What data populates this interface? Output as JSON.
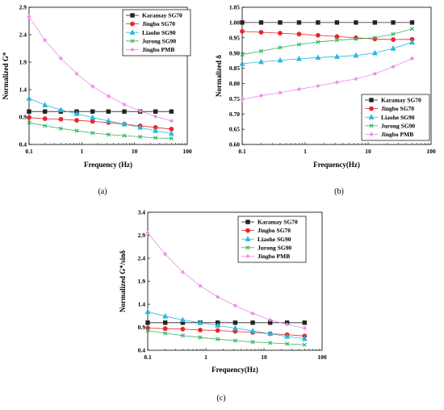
{
  "legend_labels": [
    "Karamay SG70",
    "Jingbo SG70",
    "Liaohe SG90",
    "Jurong SG90",
    "Jingbo PMB"
  ],
  "series_colors": [
    "#222222",
    "#e8262b",
    "#27b8dc",
    "#2db35c",
    "#ef8ae6"
  ],
  "marker_types": [
    "square",
    "circle",
    "triangle",
    "x",
    "star"
  ],
  "chart_data": [
    {
      "type": "scatter",
      "caption": "(a)",
      "xlabel": "Frequency (Hz)",
      "ylabel": "Normalized G*",
      "xscale": "log",
      "xlim": [
        0.1,
        100
      ],
      "ylim": [
        0.4,
        2.9
      ],
      "xticks": [
        0.1,
        1,
        10,
        100
      ],
      "yticks": [
        0.4,
        0.9,
        1.4,
        1.9,
        2.4,
        2.9
      ],
      "xtick_labels": [
        "0.1",
        "1",
        "10",
        "100"
      ],
      "ytick_labels": [
        "0.4",
        "0.9",
        "1.4",
        "1.9",
        "2.4",
        "2.9"
      ],
      "legend_position": "top-right",
      "x": [
        0.1,
        0.2,
        0.4,
        0.8,
        1.6,
        3.2,
        6.4,
        12.8,
        25,
        50
      ],
      "series": [
        {
          "name": "Karamay SG70",
          "values": [
            1.0,
            1.0,
            1.0,
            1.0,
            1.0,
            1.0,
            1.0,
            1.0,
            1.0,
            1.0
          ]
        },
        {
          "name": "Jingbo SG70",
          "values": [
            0.89,
            0.87,
            0.86,
            0.84,
            0.82,
            0.8,
            0.77,
            0.74,
            0.71,
            0.68
          ]
        },
        {
          "name": "Liaohe SG90",
          "values": [
            1.24,
            1.12,
            1.03,
            0.96,
            0.89,
            0.83,
            0.77,
            0.71,
            0.65,
            0.6
          ]
        },
        {
          "name": "Jurong SG90",
          "values": [
            0.8,
            0.74,
            0.69,
            0.65,
            0.61,
            0.58,
            0.56,
            0.54,
            0.52,
            0.51
          ]
        },
        {
          "name": "Jingbo PMB",
          "values": [
            2.73,
            2.3,
            1.97,
            1.69,
            1.46,
            1.28,
            1.13,
            1.01,
            0.91,
            0.83
          ]
        }
      ]
    },
    {
      "type": "scatter",
      "caption": "(b)",
      "xlabel": "Frequency(Hz)",
      "ylabel": "Normalized δ",
      "xscale": "log",
      "xlim": [
        0.1,
        100
      ],
      "ylim": [
        0.6,
        1.05
      ],
      "xticks": [
        0.1,
        1,
        10,
        100
      ],
      "yticks": [
        0.6,
        0.65,
        0.7,
        0.75,
        0.8,
        0.85,
        0.9,
        0.95,
        1.0,
        1.05
      ],
      "xtick_labels": [
        "0.1",
        "1",
        "10",
        "100"
      ],
      "ytick_labels": [
        "0.60",
        "0.65",
        "0.70",
        "0.75",
        "0.80",
        "0.85",
        "0.90",
        "0.95",
        "1.00",
        "1.05"
      ],
      "legend_position": "bottom-right",
      "x": [
        0.1,
        0.2,
        0.4,
        0.8,
        1.6,
        3.2,
        6.4,
        12.8,
        25,
        50
      ],
      "series": [
        {
          "name": "Karamay SG70",
          "values": [
            1.0,
            1.0,
            1.0,
            1.0,
            1.0,
            1.0,
            1.0,
            1.0,
            1.0,
            1.0
          ]
        },
        {
          "name": "Jingbo SG70",
          "values": [
            0.971,
            0.968,
            0.965,
            0.962,
            0.958,
            0.954,
            0.95,
            0.946,
            0.944,
            0.945
          ]
        },
        {
          "name": "Liaohe SG90",
          "values": [
            0.865,
            0.871,
            0.876,
            0.881,
            0.885,
            0.888,
            0.892,
            0.9,
            0.915,
            0.935
          ]
        },
        {
          "name": "Jurong SG90",
          "values": [
            0.895,
            0.906,
            0.918,
            0.928,
            0.936,
            0.942,
            0.946,
            0.95,
            0.962,
            0.979
          ]
        },
        {
          "name": "Jingbo PMB",
          "values": [
            0.748,
            0.76,
            0.77,
            0.781,
            0.792,
            0.804,
            0.815,
            0.832,
            0.855,
            0.882
          ]
        }
      ]
    },
    {
      "type": "scatter",
      "caption": "(c)",
      "xlabel": "Frequency(Hz)",
      "ylabel": "Normalized G*/sinδ",
      "xscale": "log",
      "xlim": [
        0.1,
        100
      ],
      "ylim": [
        0.4,
        3.4
      ],
      "xticks": [
        0.1,
        1,
        10,
        100
      ],
      "yticks": [
        0.4,
        0.9,
        1.4,
        1.9,
        2.4,
        2.9,
        3.4
      ],
      "xtick_labels": [
        "0.1",
        "1",
        "10",
        "100"
      ],
      "ytick_labels": [
        "0.4",
        "0.9",
        "1.4",
        "1.9",
        "2.4",
        "2.9",
        "3.4"
      ],
      "legend_position": "top-right",
      "x": [
        0.1,
        0.2,
        0.4,
        0.8,
        1.6,
        3.2,
        6.4,
        12.8,
        25,
        50
      ],
      "series": [
        {
          "name": "Karamay SG70",
          "values": [
            1.0,
            1.0,
            1.0,
            1.0,
            1.0,
            1.0,
            1.0,
            1.0,
            1.0,
            1.0
          ]
        },
        {
          "name": "Jingbo SG70",
          "values": [
            0.88,
            0.87,
            0.86,
            0.84,
            0.83,
            0.81,
            0.79,
            0.76,
            0.74,
            0.71
          ]
        },
        {
          "name": "Liaohe SG90",
          "values": [
            1.24,
            1.14,
            1.06,
            1.0,
            0.94,
            0.88,
            0.82,
            0.76,
            0.7,
            0.65
          ]
        },
        {
          "name": "Jurong SG90",
          "values": [
            0.83,
            0.77,
            0.72,
            0.68,
            0.64,
            0.61,
            0.58,
            0.56,
            0.54,
            0.52
          ]
        },
        {
          "name": "Jingbo PMB",
          "values": [
            2.95,
            2.49,
            2.1,
            1.8,
            1.56,
            1.37,
            1.2,
            1.06,
            0.96,
            0.88
          ]
        }
      ]
    }
  ]
}
